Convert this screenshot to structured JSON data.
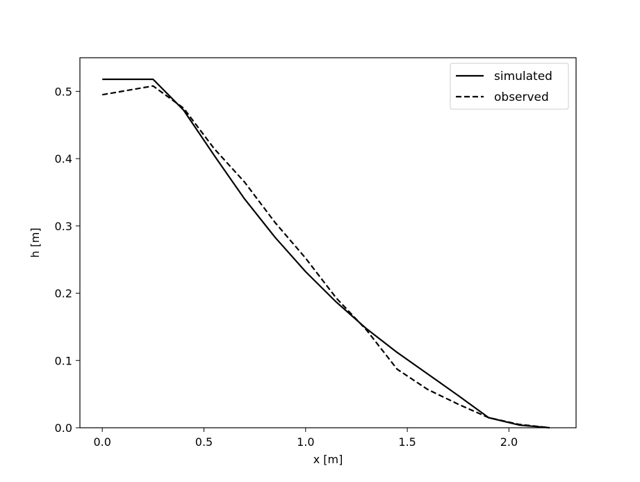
{
  "chart_data": {
    "type": "line",
    "xlabel": "x [m]",
    "ylabel": "h [m]",
    "xlim": [
      -0.11,
      2.33
    ],
    "ylim": [
      0.0,
      0.55
    ],
    "xticks": [
      0.0,
      0.5,
      1.0,
      1.5,
      2.0
    ],
    "xtick_labels": [
      "0.0",
      "0.5",
      "1.0",
      "1.5",
      "2.0"
    ],
    "yticks": [
      0.0,
      0.1,
      0.2,
      0.3,
      0.4,
      0.5
    ],
    "ytick_labels": [
      "0.0",
      "0.1",
      "0.2",
      "0.3",
      "0.4",
      "0.5"
    ],
    "grid": false,
    "legend_position": "top-right",
    "series": [
      {
        "name": "simulated",
        "style": "solid",
        "color": "#000000",
        "x": [
          0.0,
          0.25,
          0.4,
          0.55,
          0.7,
          0.85,
          1.0,
          1.15,
          1.3,
          1.45,
          1.6,
          1.75,
          1.9,
          2.05,
          2.2
        ],
        "y": [
          0.518,
          0.518,
          0.472,
          0.405,
          0.34,
          0.283,
          0.232,
          0.187,
          0.147,
          0.112,
          0.08,
          0.048,
          0.015,
          0.004,
          0.0
        ]
      },
      {
        "name": "observed",
        "style": "dashed",
        "color": "#000000",
        "x": [
          0.0,
          0.25,
          0.4,
          0.55,
          0.7,
          0.85,
          1.0,
          1.15,
          1.3,
          1.45,
          1.6,
          1.75,
          1.9,
          2.05,
          2.2
        ],
        "y": [
          0.495,
          0.508,
          0.475,
          0.415,
          0.365,
          0.305,
          0.252,
          0.193,
          0.145,
          0.087,
          0.057,
          0.035,
          0.015,
          0.005,
          0.0
        ]
      }
    ]
  }
}
